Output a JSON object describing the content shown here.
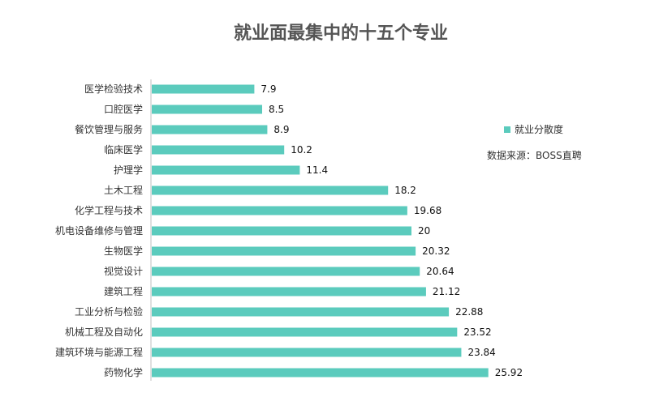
{
  "chart_data": {
    "type": "bar",
    "orientation": "horizontal",
    "title": "就业面最集中的十五个专业",
    "categories": [
      "医学检验技术",
      "口腔医学",
      "餐饮管理与服务",
      "临床医学",
      "护理学",
      "土木工程",
      "化学工程与技术",
      "机电设备维修与管理",
      "生物医学",
      "视觉设计",
      "建筑工程",
      "工业分析与检验",
      "机械工程及自动化",
      "建筑环境与能源工程",
      "药物化学"
    ],
    "values": [
      7.9,
      8.5,
      8.9,
      10.2,
      11.4,
      18.2,
      19.68,
      20,
      20.32,
      20.64,
      21.12,
      22.88,
      23.52,
      23.84,
      25.92
    ],
    "value_labels": [
      "7.9",
      "8.5",
      "8.9",
      "10.2",
      "11.4",
      "18.2",
      "19.68",
      "20",
      "20.32",
      "20.64",
      "21.12",
      "22.88",
      "23.52",
      "23.84",
      "25.92"
    ],
    "series_name": "就业分散度",
    "source": "数据来源：BOSS直聘",
    "xlim": [
      0,
      30
    ],
    "grid": false,
    "legend_position": "right",
    "bar_color": "#5bcbbd"
  }
}
